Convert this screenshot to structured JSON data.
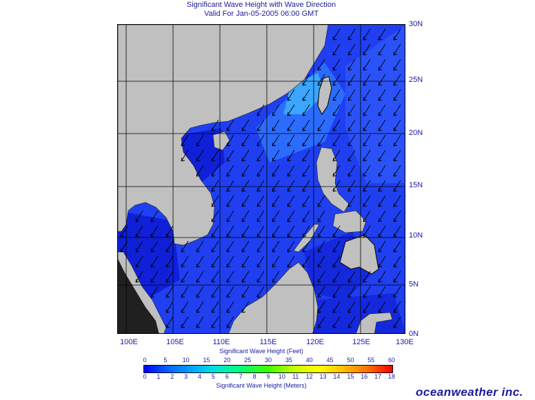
{
  "header": {
    "title": "Significant Wave Height with Wave Direction",
    "valid": "Valid For Jan-05-2005 06:00 GMT"
  },
  "map": {
    "lat_labels": [
      "30N",
      "25N",
      "20N",
      "15N",
      "10N",
      "5N",
      "0N"
    ],
    "lon_labels": [
      "100E",
      "105E",
      "110E",
      "115E",
      "120E",
      "125E",
      "130E"
    ],
    "colors": {
      "land": "#c0c0c0",
      "sea_base": "#1f3ff0",
      "sea_dark": "#1020d8",
      "sea_light": "#2b6cff",
      "sea_cyan": "#3aa6ff",
      "grid": "#000000",
      "arrow": "#000000",
      "dark_land": "#202020"
    },
    "wave_direction": "southwest"
  },
  "legend": {
    "feet_label": "Significant Wave Height (Feet)",
    "meters_label": "Significant Wave Height (Meters)",
    "feet_ticks": [
      "0",
      "5",
      "10",
      "15",
      "20",
      "25",
      "30",
      "35",
      "40",
      "45",
      "50",
      "55",
      "60"
    ],
    "meter_ticks": [
      "0",
      "1",
      "2",
      "3",
      "4",
      "5",
      "6",
      "7",
      "8",
      "9",
      "10",
      "11",
      "12",
      "13",
      "14",
      "15",
      "16",
      "17",
      "18"
    ]
  },
  "brand": "oceanweather inc."
}
